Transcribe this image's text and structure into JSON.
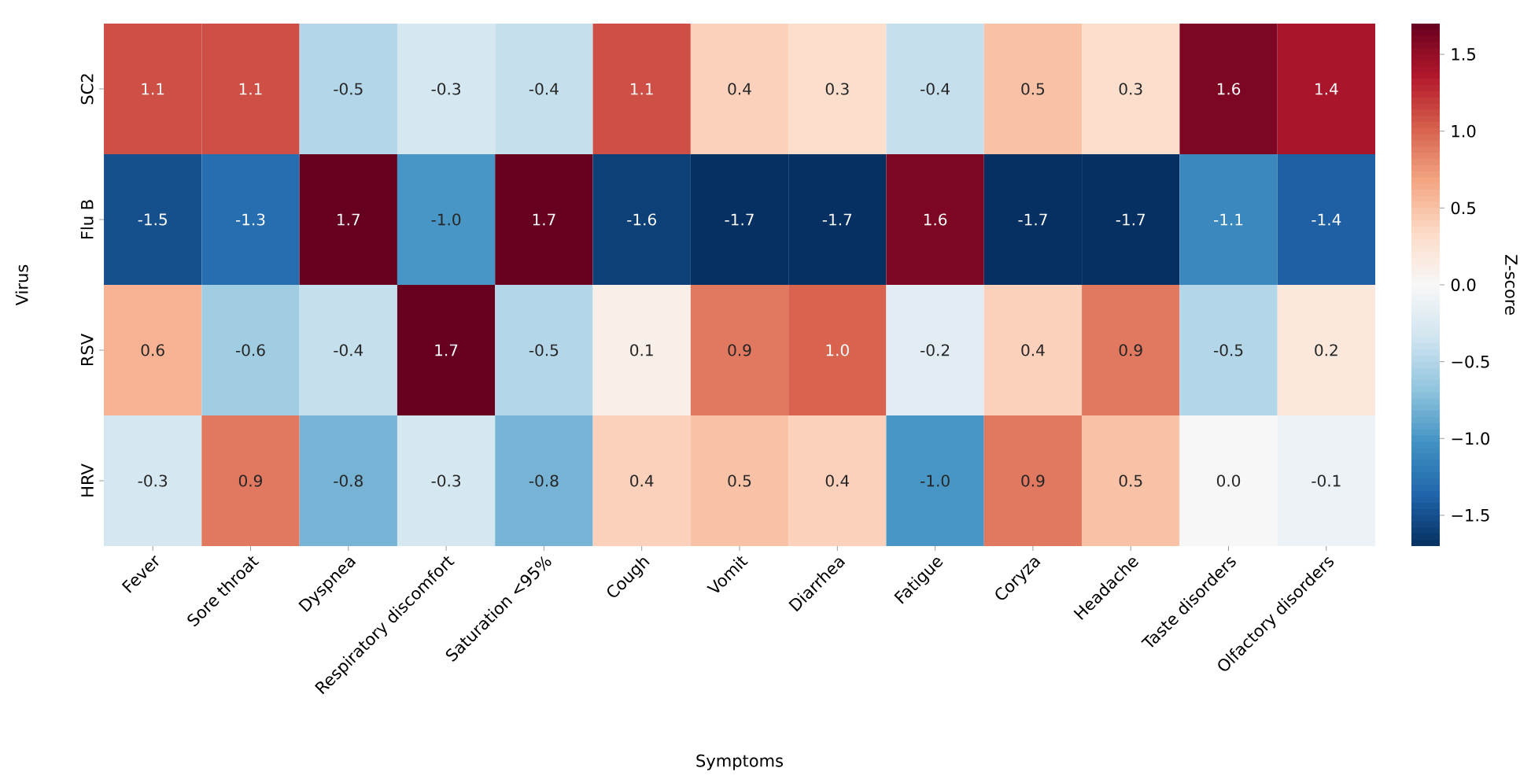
{
  "chart_data": {
    "type": "heatmap",
    "xlabel": "Symptoms",
    "ylabel": "Virus",
    "clabel": "Z-score",
    "categories": [
      "Fever",
      "Sore throat",
      "Dyspnea",
      "Respiratory discomfort",
      "Saturation <95%",
      "Cough",
      "Vomit",
      "Diarrhea",
      "Fatigue",
      "Coryza",
      "Headache",
      "Taste disorders",
      "Olfactory disorders"
    ],
    "y_categories": [
      "SC2",
      "Flu B",
      "RSV",
      "HRV"
    ],
    "cells": [
      [
        1.1,
        1.1,
        -0.5,
        -0.3,
        -0.4,
        1.1,
        0.4,
        0.3,
        -0.4,
        0.5,
        0.3,
        1.6,
        1.4
      ],
      [
        -1.5,
        -1.3,
        1.7,
        -1.0,
        1.7,
        -1.6,
        -1.7,
        -1.7,
        1.6,
        -1.7,
        -1.7,
        -1.1,
        -1.4
      ],
      [
        0.6,
        -0.6,
        -0.4,
        1.7,
        -0.5,
        0.1,
        0.9,
        1.0,
        -0.2,
        0.4,
        0.9,
        -0.5,
        0.2
      ],
      [
        -0.3,
        0.9,
        -0.8,
        -0.3,
        -0.8,
        0.4,
        0.5,
        0.4,
        -1.0,
        0.9,
        0.5,
        0.0,
        -0.1
      ]
    ],
    "cell_labels": [
      [
        "1.1",
        "1.1",
        "-0.5",
        "-0.3",
        "-0.4",
        "1.1",
        "0.4",
        "0.3",
        "-0.4",
        "0.5",
        "0.3",
        "1.6",
        "1.4"
      ],
      [
        "-1.5",
        "-1.3",
        "1.7",
        "-1.0",
        "1.7",
        "-1.6",
        "-1.7",
        "-1.7",
        "1.6",
        "-1.7",
        "-1.7",
        "-1.1",
        "-1.4"
      ],
      [
        "0.6",
        "-0.6",
        "-0.4",
        "1.7",
        "-0.5",
        "0.1",
        "0.9",
        "1.0",
        "-0.2",
        "0.4",
        "0.9",
        "-0.5",
        "0.2"
      ],
      [
        "-0.3",
        "0.9",
        "-0.8",
        "-0.3",
        "-0.8",
        "0.4",
        "0.5",
        "0.4",
        "-1.0",
        "0.9",
        "0.5",
        "0.0",
        "-0.1"
      ]
    ],
    "clim": [
      -1.7,
      1.7
    ],
    "cticks": [
      {
        "value": -1.5,
        "label": "−1.5"
      },
      {
        "value": -1.0,
        "label": "−1.0"
      },
      {
        "value": -0.5,
        "label": "−0.5"
      },
      {
        "value": 0.0,
        "label": "0.0"
      },
      {
        "value": 0.5,
        "label": "0.5"
      },
      {
        "value": 1.0,
        "label": "1.0"
      },
      {
        "value": 1.5,
        "label": "1.5"
      }
    ]
  }
}
